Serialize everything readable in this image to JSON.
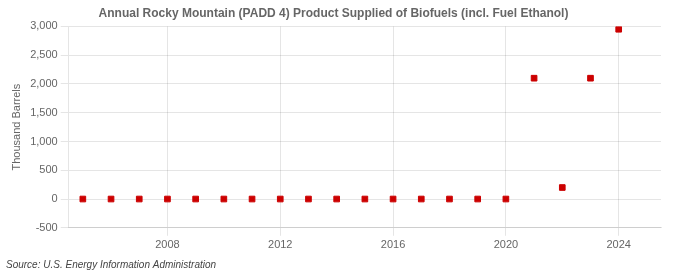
{
  "chart_data": {
    "type": "scatter",
    "title": "Annual Rocky Mountain (PADD 4) Product Supplied of Biofuels (incl. Fuel Ethanol)",
    "ylabel": "Thousand Barrels",
    "annotations": [
      "Source: U.S. Energy Information Administration"
    ],
    "x": [
      2005,
      2006,
      2007,
      2008,
      2009,
      2010,
      2011,
      2012,
      2013,
      2014,
      2015,
      2016,
      2017,
      2018,
      2019,
      2020,
      2021,
      2022,
      2023,
      2024
    ],
    "values": [
      0,
      0,
      0,
      0,
      0,
      0,
      0,
      0,
      0,
      0,
      0,
      0,
      0,
      0,
      0,
      0,
      2100,
      200,
      2100,
      2950
    ],
    "color": "#cc0000",
    "marker": "square",
    "xlim": [
      2004.5,
      2025.5
    ],
    "xticks": [
      2008,
      2012,
      2016,
      2020,
      2024
    ],
    "ylim": [
      -500,
      3000
    ],
    "yticks": [
      -500,
      0,
      500,
      {
        "value": 1000,
        "label": "1,000"
      },
      {
        "value": 1500,
        "label": "1,500"
      },
      {
        "value": 2000,
        "label": "2,000"
      },
      {
        "value": 2500,
        "label": "2,500"
      },
      {
        "value": 3000,
        "label": "3,000"
      }
    ],
    "grid": true
  }
}
